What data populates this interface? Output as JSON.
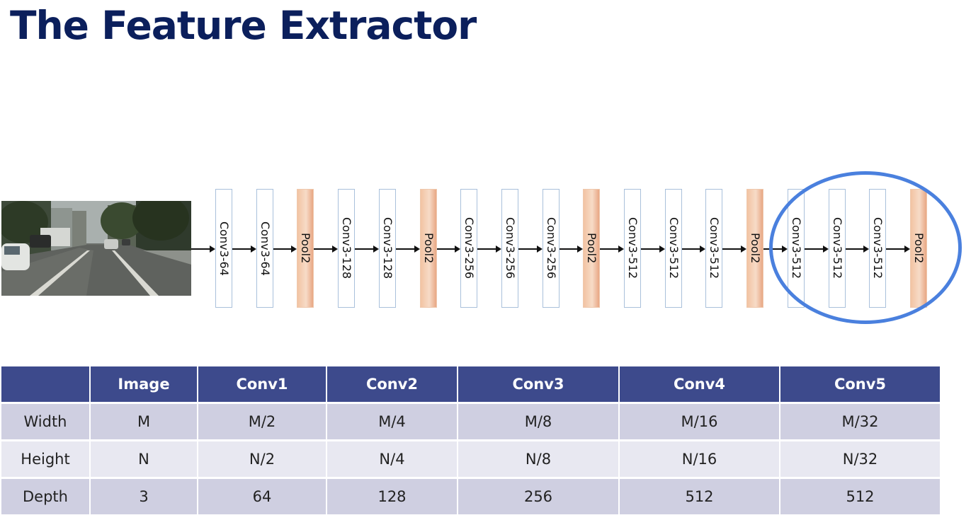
{
  "title": "The Feature Extractor",
  "photo_icon": "street-scene-image",
  "pipeline": {
    "layers": [
      {
        "label": "Conv3-64",
        "type": "conv"
      },
      {
        "label": "Conv3-64",
        "type": "conv"
      },
      {
        "label": "Pool2",
        "type": "pool"
      },
      {
        "label": "Conv3-128",
        "type": "conv"
      },
      {
        "label": "Conv3-128",
        "type": "conv"
      },
      {
        "label": "Pool2",
        "type": "pool"
      },
      {
        "label": "Conv3-256",
        "type": "conv"
      },
      {
        "label": "Conv3-256",
        "type": "conv"
      },
      {
        "label": "Conv3-256",
        "type": "conv"
      },
      {
        "label": "Pool2",
        "type": "pool"
      },
      {
        "label": "Conv3-512",
        "type": "conv"
      },
      {
        "label": "Conv3-512",
        "type": "conv"
      },
      {
        "label": "Conv3-512",
        "type": "conv"
      },
      {
        "label": "Pool2",
        "type": "pool"
      },
      {
        "label": "Conv3-512",
        "type": "conv"
      },
      {
        "label": "Conv3-512",
        "type": "conv"
      },
      {
        "label": "Conv3-512",
        "type": "conv"
      },
      {
        "label": "Pool2",
        "type": "pool"
      }
    ],
    "highlight_color": "#4a80de"
  },
  "table": {
    "headers": [
      "",
      "Image",
      "Conv1",
      "Conv2",
      "Conv3",
      "Conv4",
      "Conv5"
    ],
    "rows": [
      [
        "Width",
        "M",
        "M/2",
        "M/4",
        "M/8",
        "M/16",
        "M/32"
      ],
      [
        "Height",
        "N",
        "N/2",
        "N/4",
        "N/8",
        "N/16",
        "N/32"
      ],
      [
        "Depth",
        "3",
        "64",
        "128",
        "256",
        "512",
        "512"
      ]
    ]
  },
  "colors": {
    "title": "#0b1f5c",
    "header_bg": "#3d4a8c",
    "row_odd": "#cfcfe1",
    "row_even": "#e8e8f1",
    "pool": "#f2c3a2"
  }
}
